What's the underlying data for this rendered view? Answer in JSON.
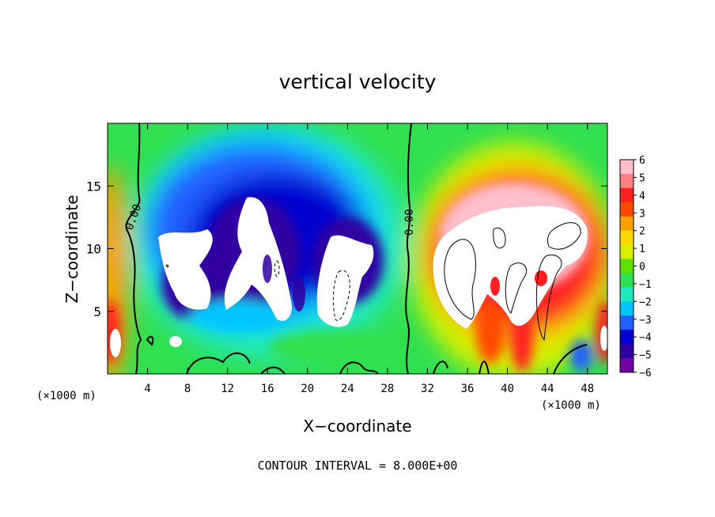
{
  "chart_data": {
    "type": "heatmap",
    "title": "vertical velocity",
    "xlabel": "X−coordinate",
    "ylabel": "Z−coordinate",
    "x_unit_label": "(×1000 m)",
    "y_unit_label": "(×1000 m)",
    "xlim": [
      0,
      50
    ],
    "ylim": [
      0,
      20
    ],
    "x_ticks": [
      4,
      8,
      12,
      16,
      20,
      24,
      28,
      32,
      36,
      40,
      44,
      48
    ],
    "y_ticks": [
      5,
      10,
      15
    ],
    "colorbar": {
      "min": -6,
      "max": 6,
      "ticks": [
        6,
        5,
        4,
        3,
        2,
        1,
        0,
        -1,
        -2,
        -3,
        -4,
        -5,
        -6
      ],
      "tick_labels": [
        "6",
        "5",
        "4",
        "3",
        "2",
        "1",
        "0",
        "−1",
        "−2",
        "−3",
        "−4",
        "−5",
        "−6"
      ],
      "colors": [
        "#ffc0cb",
        "#ff8080",
        "#ff2020",
        "#ff4800",
        "#ffa000",
        "#ffd800",
        "#d8f000",
        "#60e000",
        "#30e050",
        "#20e8c0",
        "#00c8ff",
        "#2060ff",
        "#0000d0",
        "#3000a0",
        "#7000a0"
      ]
    },
    "contour_labels": [
      "0.00",
      "0.00"
    ],
    "annotation": "CONTOUR INTERVAL = 8.000E+00",
    "features": [
      {
        "kind": "updraft",
        "x": 42,
        "z": 9.5,
        "value": 6
      },
      {
        "kind": "updraft",
        "x": 1,
        "z": 4,
        "value": 6
      },
      {
        "kind": "downdraft",
        "x": 16,
        "z": 9.5,
        "value": -6
      },
      {
        "kind": "downdraft",
        "x": 24,
        "z": 7.5,
        "value": -6
      },
      {
        "kind": "downdraft",
        "x": 8,
        "z": 8.5,
        "value": -6
      }
    ]
  }
}
